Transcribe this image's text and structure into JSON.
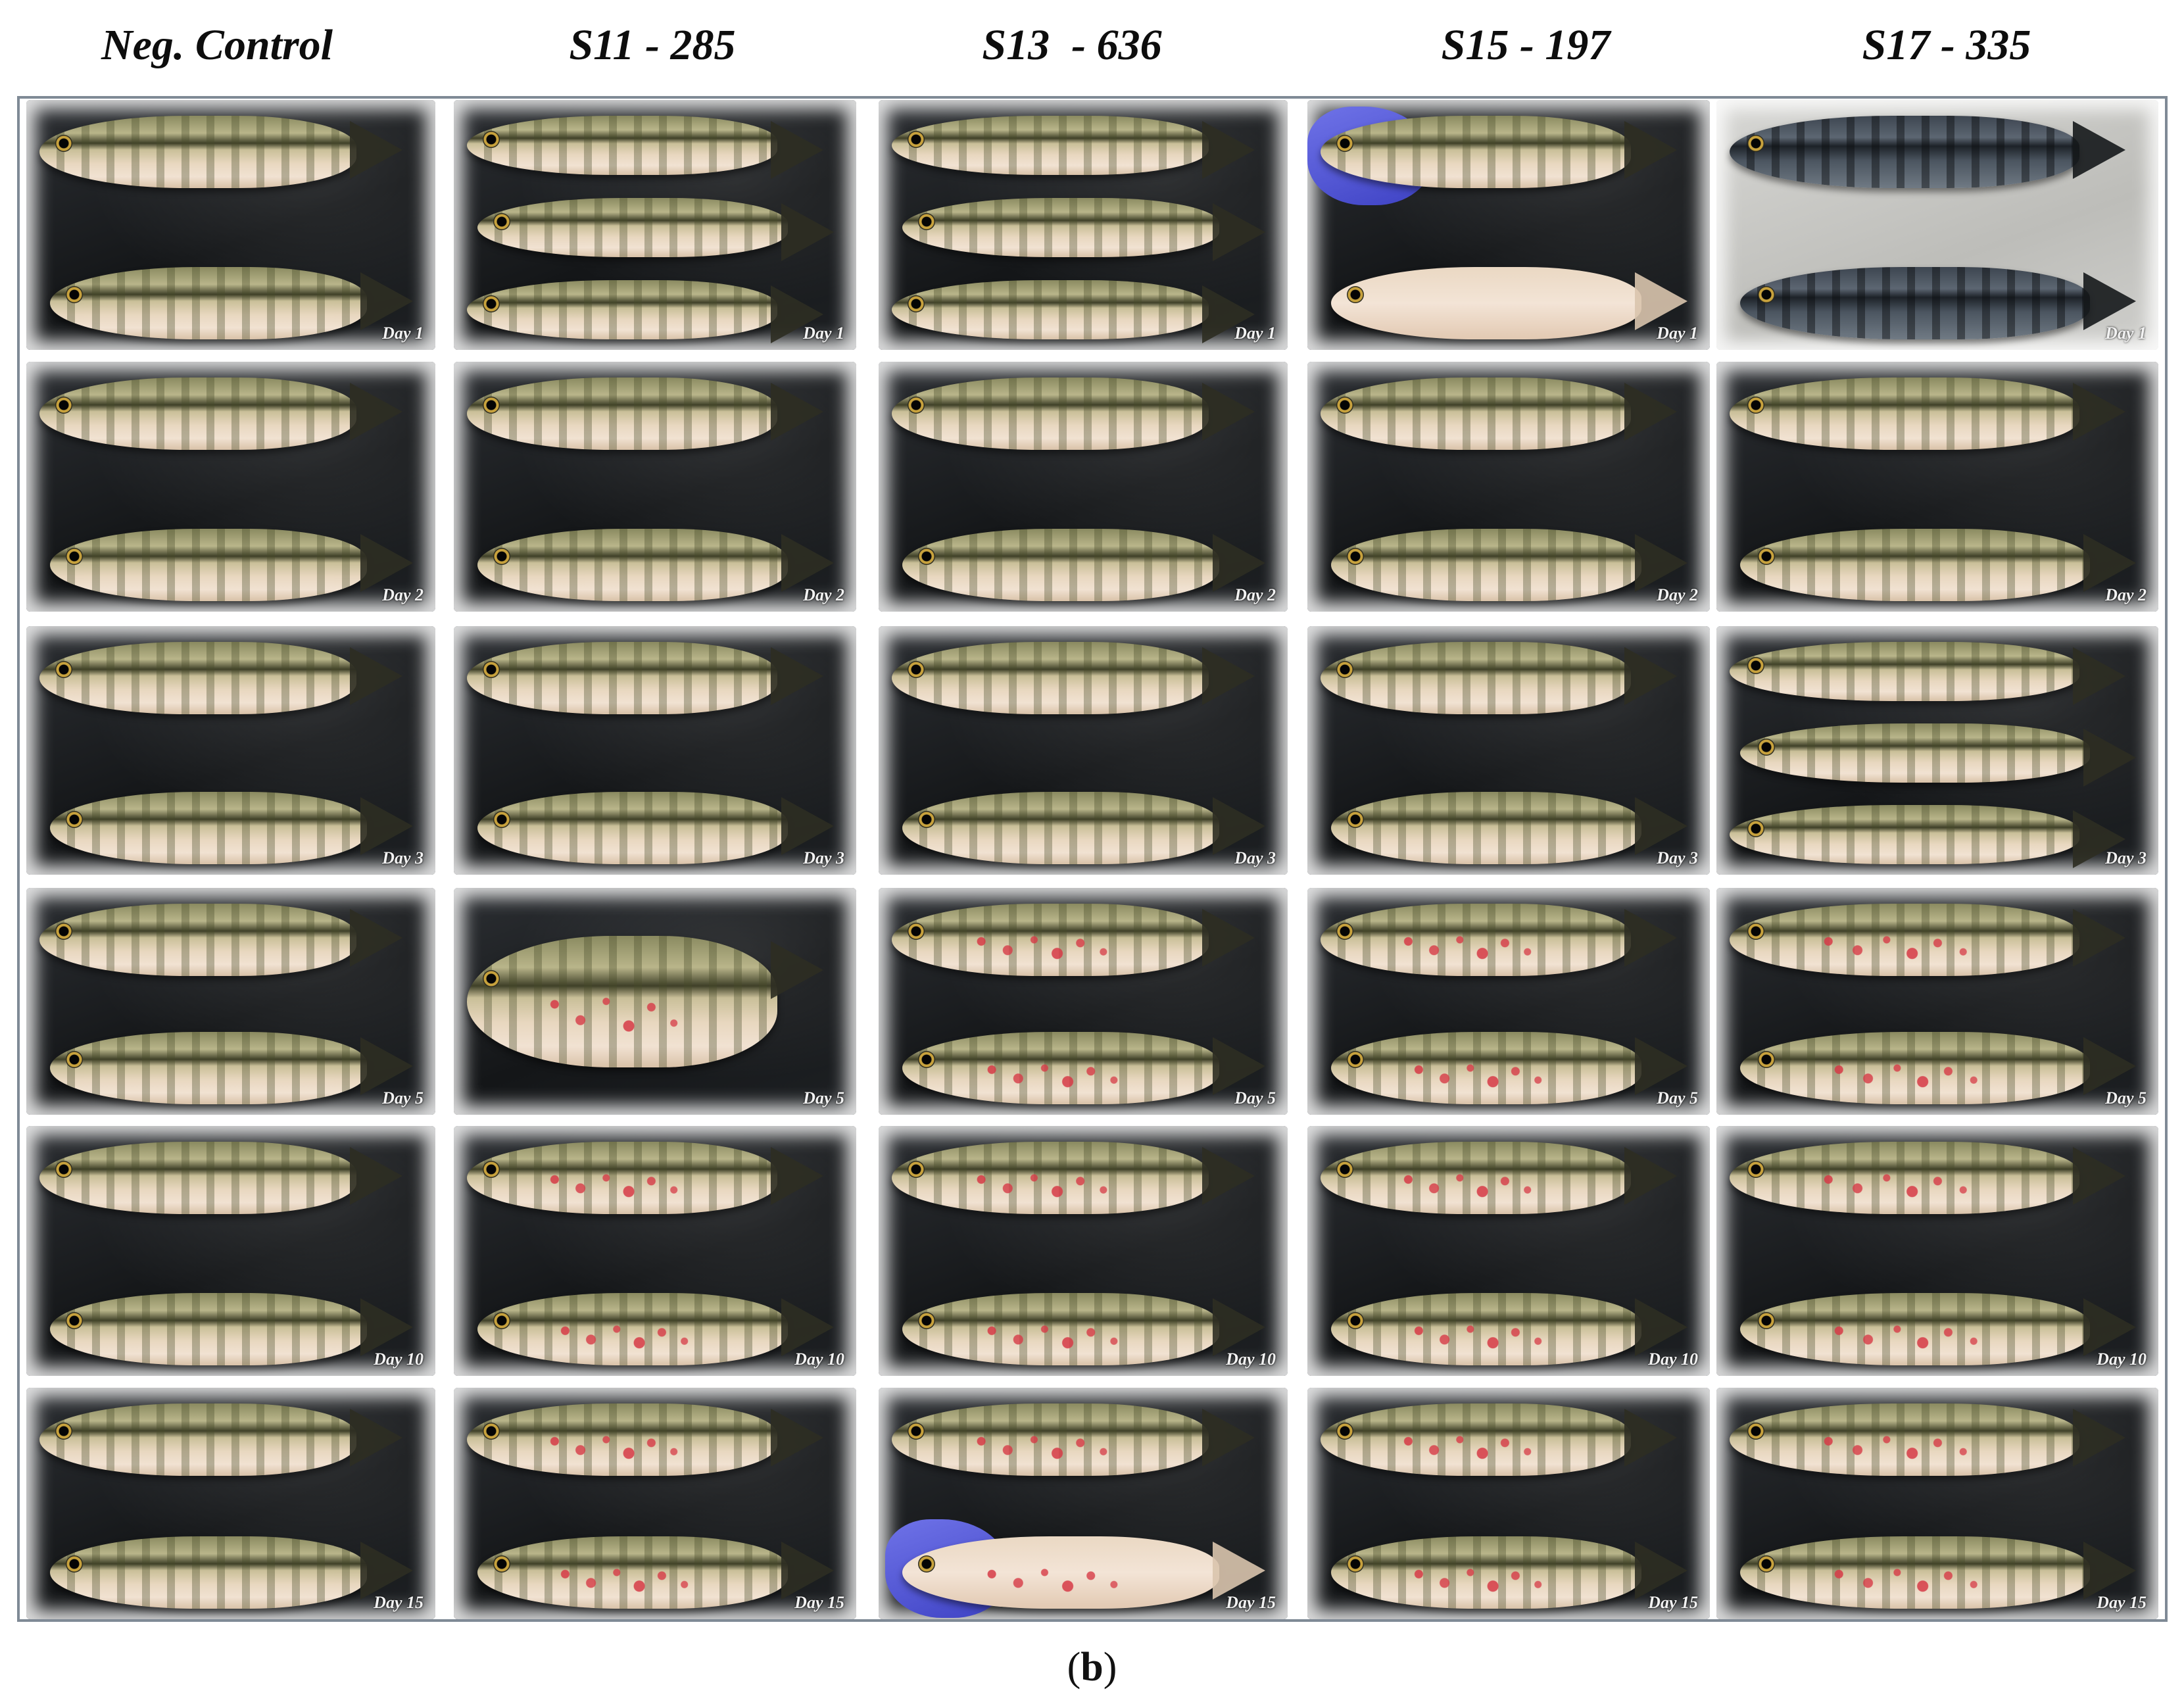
{
  "columns": [
    {
      "title": "Neg. Control"
    },
    {
      "title": "S11 - 285"
    },
    {
      "title": "S13  - 636"
    },
    {
      "title": "S15 - 197"
    },
    {
      "title": "S17 - 335"
    }
  ],
  "rows": [
    {
      "day": "Day 1"
    },
    {
      "day": "Day 2"
    },
    {
      "day": "Day 3"
    },
    {
      "day": "Day 5"
    },
    {
      "day": "Day 10"
    },
    {
      "day": "Day 15"
    }
  ],
  "caption": {
    "open": "(",
    "letter": "b",
    "close": ")"
  },
  "colors": {
    "frame": "#7f8a96",
    "lesion": "#d63a46",
    "glove": "#5a5ee0"
  }
}
